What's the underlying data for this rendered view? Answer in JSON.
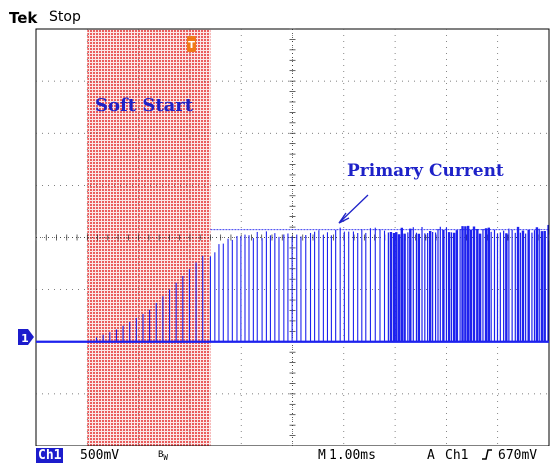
{
  "header": {
    "brand": "Tek",
    "run_state": "Stop"
  },
  "footer": {
    "channel": "Ch1",
    "scale": "500mV",
    "bw_icon": "bandwidth-limit-icon",
    "time_prefix": "M",
    "time_value": "1.00ms",
    "trigger_mode": "A",
    "trigger_channel": "Ch1",
    "edge_icon": "rising-edge-icon",
    "trigger_level": "670mV"
  },
  "markers": {
    "ground_marker": "1",
    "trigger_marker": "T"
  },
  "annotations": {
    "soft_start": "Soft Start",
    "primary_current": "Primary Current"
  },
  "colors": {
    "trace": "#1e22ee",
    "region": "#f3a0a0",
    "annotation": "#1e22c8"
  },
  "chart_data": {
    "type": "line",
    "title": "",
    "xlabel": "",
    "ylabel": "",
    "x_divisions": 10,
    "y_divisions": 8,
    "time_per_div_ms": 1.0,
    "volts_per_div_mV": 500,
    "xlim": [
      0,
      10
    ],
    "ylim": [
      -2,
      6
    ],
    "grid": true,
    "highlight_region": {
      "label": "Soft Start",
      "x_start": 1.0,
      "x_end": 3.4
    },
    "series": [
      {
        "description": "switching-current pulse peaks, envelope in divisions above baseline",
        "envelope_points": [
          [
            0.0,
            0.0
          ],
          [
            1.0,
            0.0
          ],
          [
            1.1,
            0.05
          ],
          [
            1.6,
            0.25
          ],
          [
            2.2,
            0.6
          ],
          [
            2.8,
            1.2
          ],
          [
            3.3,
            1.7
          ],
          [
            3.4,
            1.7
          ],
          [
            3.6,
            2.0
          ],
          [
            4.0,
            2.1
          ],
          [
            5.0,
            2.15
          ],
          [
            6.0,
            2.2
          ],
          [
            7.0,
            2.2
          ],
          [
            8.0,
            2.25
          ],
          [
            9.0,
            2.2
          ],
          [
            10.0,
            2.25
          ]
        ]
      }
    ]
  }
}
